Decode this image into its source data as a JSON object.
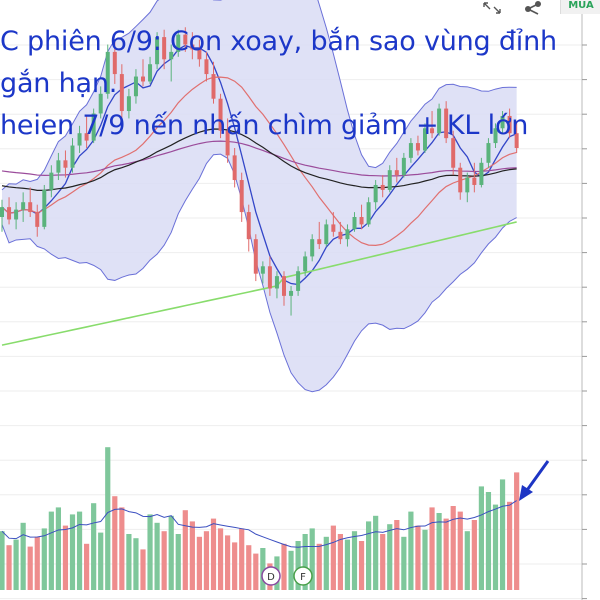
{
  "annotation": {
    "line1": "C phiên 6/9: Con xoay, bắn sao vùng đỉnh",
    "line2": "gắn hạn.",
    "line3": "heien 7/9 nến nhấn chìm giảm + KL lớn"
  },
  "toolbar": {
    "buy_label": "MUA",
    "expand_icon": "expand-icon",
    "share_icon": "share-icon"
  },
  "event_markers": [
    "D",
    "F"
  ],
  "colors": {
    "up": "#5ab37c",
    "down": "#e06a6a",
    "volume_up": "#7fc79b",
    "volume_down": "#ee8d8d",
    "bollinger_fill": "#d9dcf5",
    "bollinger_line": "#6a70d8",
    "ma_short": "#3346c8",
    "ma_mid": "#e07070",
    "ma_long_purple": "#9b4c9b",
    "ma_long_black": "#222222",
    "ma_200": "#88dc6c",
    "arrow": "#1d35c4"
  },
  "chart_data": {
    "type": "candlestick",
    "panels": [
      "price",
      "volume"
    ],
    "ohlc": [
      [
        6.2,
        6.55,
        5.9,
        6.4
      ],
      [
        6.4,
        6.6,
        6.05,
        6.15
      ],
      [
        6.15,
        6.5,
        5.95,
        6.35
      ],
      [
        6.35,
        6.7,
        6.1,
        6.5
      ],
      [
        6.5,
        6.8,
        6.2,
        6.3
      ],
      [
        6.3,
        6.45,
        5.8,
        6.0
      ],
      [
        6.0,
        6.85,
        5.95,
        6.75
      ],
      [
        6.75,
        7.25,
        6.6,
        7.1
      ],
      [
        7.1,
        7.5,
        6.95,
        7.35
      ],
      [
        7.35,
        7.55,
        7.0,
        7.2
      ],
      [
        7.2,
        7.8,
        7.1,
        7.65
      ],
      [
        7.65,
        8.05,
        7.5,
        7.9
      ],
      [
        7.9,
        8.25,
        7.6,
        7.75
      ],
      [
        7.75,
        8.4,
        7.7,
        8.3
      ],
      [
        8.3,
        8.85,
        8.2,
        8.7
      ],
      [
        8.7,
        9.7,
        8.6,
        9.55
      ],
      [
        9.55,
        9.75,
        8.9,
        9.1
      ],
      [
        9.1,
        9.3,
        8.15,
        8.35
      ],
      [
        8.35,
        8.8,
        8.2,
        8.65
      ],
      [
        8.65,
        9.2,
        8.5,
        9.05
      ],
      [
        9.05,
        9.4,
        8.85,
        8.95
      ],
      [
        8.95,
        9.45,
        8.9,
        9.3
      ],
      [
        9.3,
        9.95,
        9.2,
        9.85
      ],
      [
        9.85,
        10.0,
        9.2,
        9.4
      ],
      [
        9.4,
        9.7,
        8.95,
        9.55
      ],
      [
        9.55,
        10.0,
        9.45,
        9.9
      ],
      [
        9.9,
        10.05,
        9.55,
        9.7
      ],
      [
        9.7,
        9.95,
        9.4,
        9.6
      ],
      [
        9.6,
        9.8,
        9.25,
        9.4
      ],
      [
        9.4,
        9.55,
        8.95,
        9.1
      ],
      [
        9.1,
        9.35,
        8.5,
        8.6
      ],
      [
        8.6,
        8.7,
        7.8,
        7.95
      ],
      [
        7.95,
        8.2,
        7.3,
        7.45
      ],
      [
        7.45,
        7.6,
        6.8,
        6.95
      ],
      [
        6.95,
        7.1,
        6.1,
        6.3
      ],
      [
        6.3,
        6.45,
        5.5,
        5.75
      ],
      [
        5.75,
        5.85,
        4.9,
        5.05
      ],
      [
        5.05,
        5.3,
        4.85,
        5.2
      ],
      [
        5.2,
        5.4,
        4.6,
        4.75
      ],
      [
        4.75,
        5.1,
        4.55,
        5.0
      ],
      [
        5.0,
        5.1,
        4.4,
        4.6
      ],
      [
        4.6,
        4.8,
        4.2,
        4.7
      ],
      [
        4.7,
        5.2,
        4.6,
        5.1
      ],
      [
        5.1,
        5.5,
        5.0,
        5.4
      ],
      [
        5.4,
        5.85,
        5.3,
        5.75
      ],
      [
        5.75,
        6.1,
        5.55,
        5.65
      ],
      [
        5.65,
        6.15,
        5.6,
        6.05
      ],
      [
        6.05,
        6.3,
        5.8,
        5.9
      ],
      [
        5.9,
        6.1,
        5.65,
        5.75
      ],
      [
        5.75,
        6.05,
        5.6,
        5.95
      ],
      [
        5.95,
        6.3,
        5.9,
        6.2
      ],
      [
        6.2,
        6.45,
        5.95,
        6.05
      ],
      [
        6.05,
        6.6,
        6.0,
        6.5
      ],
      [
        6.5,
        6.95,
        6.35,
        6.85
      ],
      [
        6.85,
        7.05,
        6.6,
        6.75
      ],
      [
        6.75,
        7.25,
        6.7,
        7.15
      ],
      [
        7.15,
        7.4,
        6.9,
        7.05
      ],
      [
        7.05,
        7.5,
        7.0,
        7.4
      ],
      [
        7.4,
        7.8,
        7.3,
        7.7
      ],
      [
        7.7,
        7.85,
        7.45,
        7.55
      ],
      [
        7.55,
        8.1,
        7.5,
        8.0
      ],
      [
        8.0,
        8.35,
        7.8,
        7.9
      ],
      [
        7.9,
        8.5,
        7.85,
        8.4
      ],
      [
        8.4,
        8.55,
        7.7,
        7.8
      ],
      [
        7.8,
        7.95,
        7.05,
        7.2
      ],
      [
        7.2,
        7.3,
        6.55,
        6.7
      ],
      [
        6.7,
        7.1,
        6.5,
        7.0
      ],
      [
        7.0,
        7.3,
        6.7,
        6.85
      ],
      [
        6.85,
        7.4,
        6.8,
        7.3
      ],
      [
        7.3,
        7.8,
        7.2,
        7.7
      ],
      [
        7.7,
        8.1,
        7.6,
        8.0
      ],
      [
        8.0,
        8.35,
        7.9,
        8.25
      ],
      [
        8.25,
        8.4,
        7.8,
        7.9
      ],
      [
        7.9,
        8.15,
        7.5,
        7.6
      ]
    ],
    "volume": [
      [
        4.2,
        0
      ],
      [
        3.2,
        1
      ],
      [
        3.6,
        0
      ],
      [
        4.8,
        0
      ],
      [
        3.1,
        1
      ],
      [
        3.8,
        1
      ],
      [
        4.4,
        0
      ],
      [
        5.6,
        0
      ],
      [
        5.9,
        0
      ],
      [
        4.6,
        1
      ],
      [
        5.4,
        0
      ],
      [
        5.6,
        0
      ],
      [
        3.3,
        1
      ],
      [
        6.2,
        0
      ],
      [
        4.1,
        0
      ],
      [
        10.2,
        0
      ],
      [
        6.7,
        1
      ],
      [
        5.9,
        1
      ],
      [
        4.0,
        0
      ],
      [
        3.7,
        0
      ],
      [
        2.9,
        1
      ],
      [
        5.4,
        0
      ],
      [
        4.8,
        0
      ],
      [
        4.2,
        1
      ],
      [
        5.3,
        0
      ],
      [
        4.0,
        0
      ],
      [
        5.7,
        1
      ],
      [
        4.9,
        1
      ],
      [
        3.8,
        1
      ],
      [
        4.2,
        1
      ],
      [
        5.1,
        1
      ],
      [
        4.4,
        1
      ],
      [
        3.9,
        1
      ],
      [
        3.4,
        1
      ],
      [
        4.4,
        1
      ],
      [
        3.2,
        1
      ],
      [
        2.6,
        1
      ],
      [
        3.0,
        0
      ],
      [
        1.9,
        1
      ],
      [
        2.4,
        0
      ],
      [
        3.3,
        1
      ],
      [
        2.8,
        0
      ],
      [
        3.5,
        0
      ],
      [
        4.0,
        0
      ],
      [
        4.4,
        0
      ],
      [
        3.3,
        1
      ],
      [
        3.8,
        0
      ],
      [
        4.6,
        1
      ],
      [
        4.0,
        1
      ],
      [
        3.6,
        0
      ],
      [
        4.2,
        0
      ],
      [
        3.5,
        1
      ],
      [
        4.9,
        0
      ],
      [
        5.3,
        0
      ],
      [
        4.0,
        1
      ],
      [
        4.7,
        0
      ],
      [
        5.0,
        1
      ],
      [
        3.8,
        0
      ],
      [
        5.6,
        0
      ],
      [
        4.6,
        1
      ],
      [
        4.3,
        0
      ],
      [
        5.9,
        1
      ],
      [
        5.5,
        0
      ],
      [
        5.1,
        1
      ],
      [
        6.0,
        1
      ],
      [
        5.6,
        1
      ],
      [
        4.2,
        0
      ],
      [
        5.0,
        1
      ],
      [
        7.4,
        0
      ],
      [
        7.0,
        0
      ],
      [
        6.1,
        0
      ],
      [
        7.9,
        0
      ],
      [
        6.3,
        1
      ],
      [
        8.4,
        1
      ]
    ]
  }
}
